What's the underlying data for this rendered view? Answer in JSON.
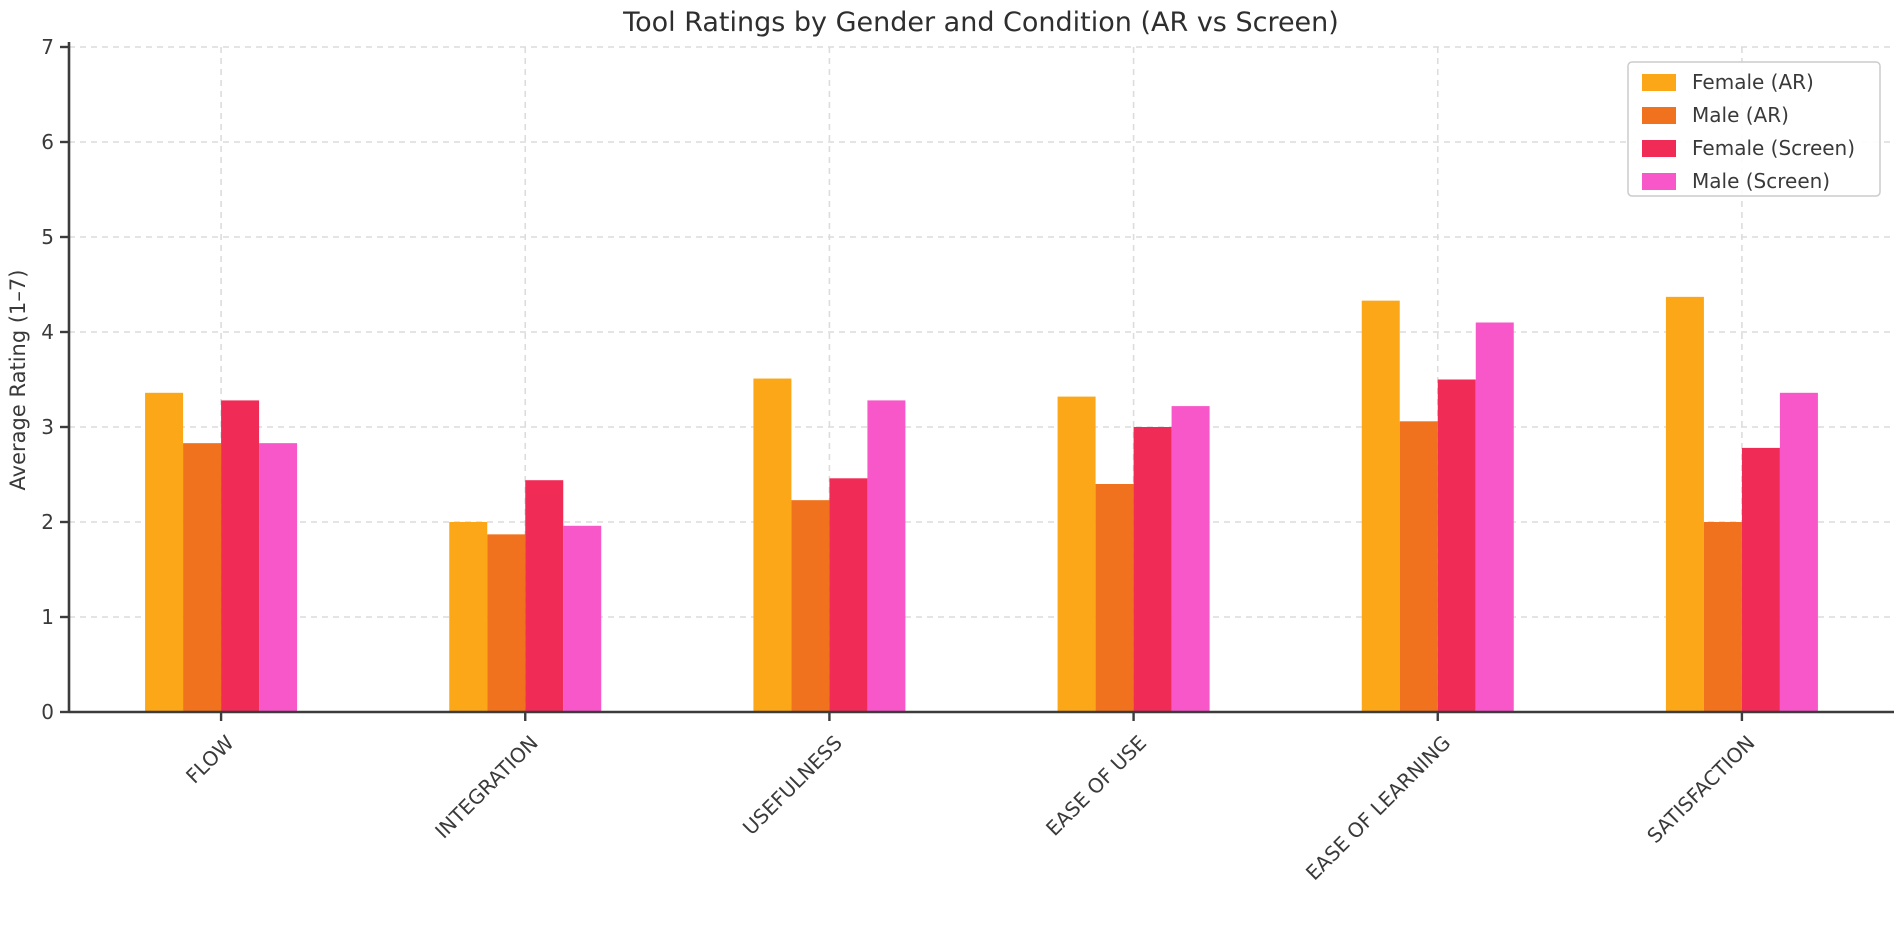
{
  "chart_data": {
    "type": "bar",
    "title": "Tool Ratings by Gender and Condition (AR vs Screen)",
    "xlabel": "",
    "ylabel": "Average Rating (1–7)",
    "categories": [
      "FLOW",
      "INTEGRATION",
      "USEFULNESS",
      "EASE OF USE",
      "EASE OF LEARNING",
      "SATISFACTION"
    ],
    "series": [
      {
        "name": "Female (AR)",
        "color": "#FBA718",
        "values": [
          3.36,
          2.0,
          3.51,
          3.32,
          4.33,
          4.37
        ]
      },
      {
        "name": "Male (AR)",
        "color": "#F0721E",
        "values": [
          2.83,
          1.87,
          2.23,
          2.4,
          3.06,
          2.0
        ]
      },
      {
        "name": "Female (Screen)",
        "color": "#EF2B56",
        "values": [
          3.28,
          2.44,
          2.46,
          3.0,
          3.5,
          2.78
        ]
      },
      {
        "name": "Male (Screen)",
        "color": "#F757C8",
        "values": [
          2.83,
          1.96,
          3.28,
          3.22,
          4.1,
          3.36
        ]
      }
    ],
    "ylim": [
      0,
      7
    ],
    "yticks": [
      0,
      1,
      2,
      3,
      4,
      5,
      6,
      7
    ],
    "grid": true,
    "grid_style": "dashed",
    "legend_position": "upper right",
    "colors": {
      "grid": "#dcdcdc",
      "axis": "#3c3c3c",
      "text": "#3a3a3a",
      "legend_border": "#cccccc",
      "background": "#ffffff"
    }
  }
}
